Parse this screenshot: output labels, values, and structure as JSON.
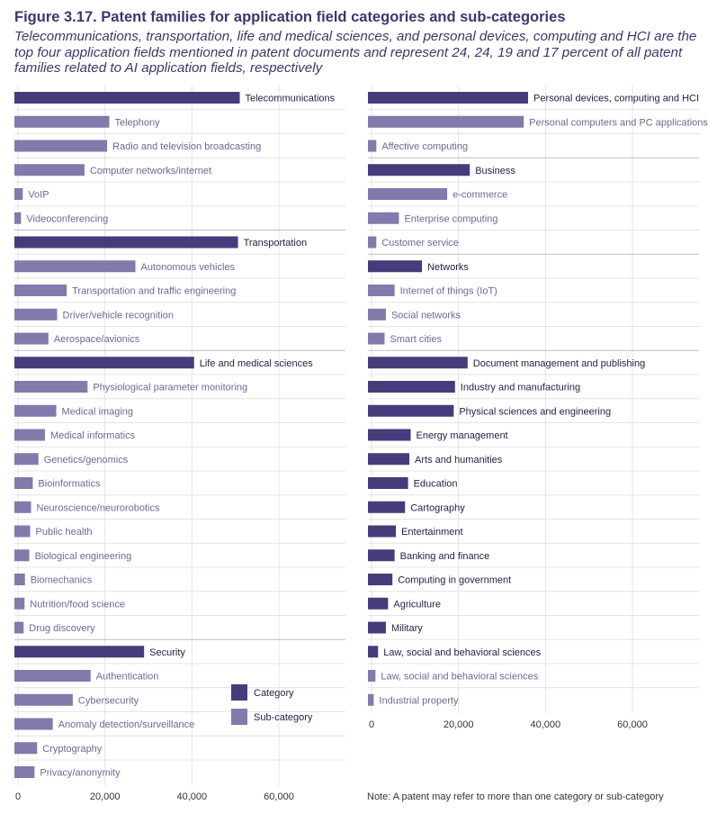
{
  "figure": {
    "title": "Figure 3.17. Patent families for application field categories and sub-categories",
    "subtitle": "Telecommunications, transportation, life and medical sciences, and personal devices, computing and HCI are the top four application fields mentioned in patent documents and represent 24, 24, 19 and 17 percent of all patent families related to AI application fields, respectively",
    "footnote": "Note: A patent may refer to more than one category or sub-category"
  },
  "colors": {
    "category": "#463c7b",
    "subcategory": "#8479ab",
    "grid": "#e4e4e4",
    "separator": "#bdbdbd"
  },
  "legend": {
    "category": "Category",
    "subcategory": "Sub-category"
  },
  "chart_data": [
    {
      "type": "bar",
      "orientation": "horizontal",
      "xlim": [
        0,
        75000
      ],
      "xticks": [
        "0",
        "20,000",
        "40,000",
        "60,000"
      ],
      "xtick_values": [
        0,
        20000,
        40000,
        60000
      ],
      "rows": [
        {
          "label": "Telecommunications",
          "value": 51000,
          "kind": "category"
        },
        {
          "label": "Telephony",
          "value": 21000,
          "kind": "subcategory"
        },
        {
          "label": "Radio and television broadcasting",
          "value": 20500,
          "kind": "subcategory"
        },
        {
          "label": "Computer networks/internet",
          "value": 15300,
          "kind": "subcategory"
        },
        {
          "label": "VoIP",
          "value": 1100,
          "kind": "subcategory"
        },
        {
          "label": "Videoconferencing",
          "value": 700,
          "kind": "subcategory"
        },
        {
          "label": "Transportation",
          "value": 50600,
          "kind": "category"
        },
        {
          "label": "Autonomous vehicles",
          "value": 27000,
          "kind": "subcategory"
        },
        {
          "label": "Transportation and traffic engineering",
          "value": 11200,
          "kind": "subcategory"
        },
        {
          "label": "Driver/vehicle recognition",
          "value": 9000,
          "kind": "subcategory"
        },
        {
          "label": "Aerospace/avionics",
          "value": 7000,
          "kind": "subcategory"
        },
        {
          "label": "Life and medical sciences",
          "value": 40500,
          "kind": "category"
        },
        {
          "label": "Physiological parameter monitoring",
          "value": 16000,
          "kind": "subcategory"
        },
        {
          "label": "Medical imaging",
          "value": 8800,
          "kind": "subcategory"
        },
        {
          "label": "Medical informatics",
          "value": 6200,
          "kind": "subcategory"
        },
        {
          "label": "Genetics/genomics",
          "value": 4700,
          "kind": "subcategory"
        },
        {
          "label": "Bioinformatics",
          "value": 3400,
          "kind": "subcategory"
        },
        {
          "label": "Neuroscience/neurorobotics",
          "value": 3000,
          "kind": "subcategory"
        },
        {
          "label": "Public health",
          "value": 2800,
          "kind": "subcategory"
        },
        {
          "label": "Biological engineering",
          "value": 2600,
          "kind": "subcategory"
        },
        {
          "label": "Biomechanics",
          "value": 1600,
          "kind": "subcategory"
        },
        {
          "label": "Nutrition/food science",
          "value": 1500,
          "kind": "subcategory"
        },
        {
          "label": "Drug discovery",
          "value": 1300,
          "kind": "subcategory"
        },
        {
          "label": "Security",
          "value": 29000,
          "kind": "category"
        },
        {
          "label": "Authentication",
          "value": 16700,
          "kind": "subcategory"
        },
        {
          "label": "Cybersecurity",
          "value": 12600,
          "kind": "subcategory"
        },
        {
          "label": "Anomaly detection/surveillance",
          "value": 8000,
          "kind": "subcategory"
        },
        {
          "label": "Cryptography",
          "value": 4400,
          "kind": "subcategory"
        },
        {
          "label": "Privacy/anonymity",
          "value": 3800,
          "kind": "subcategory"
        }
      ]
    },
    {
      "type": "bar",
      "orientation": "horizontal",
      "xlim": [
        0,
        75000
      ],
      "xticks": [
        "0",
        "20,000",
        "40,000",
        "60,000"
      ],
      "xtick_values": [
        0,
        20000,
        40000,
        60000
      ],
      "rows": [
        {
          "label": "Personal devices, computing and HCI",
          "value": 36000,
          "kind": "category"
        },
        {
          "label": "Personal computers and PC applications",
          "value": 35000,
          "kind": "subcategory"
        },
        {
          "label": "Affective computing",
          "value": 1100,
          "kind": "subcategory"
        },
        {
          "label": "Business",
          "value": 22600,
          "kind": "category"
        },
        {
          "label": "e-commerce",
          "value": 17400,
          "kind": "subcategory"
        },
        {
          "label": "Enterprise computing",
          "value": 6300,
          "kind": "subcategory"
        },
        {
          "label": "Customer service",
          "value": 1100,
          "kind": "subcategory"
        },
        {
          "label": "Networks",
          "value": 11600,
          "kind": "category"
        },
        {
          "label": "Internet of things (IoT)",
          "value": 5300,
          "kind": "subcategory"
        },
        {
          "label": "Social networks",
          "value": 3300,
          "kind": "subcategory"
        },
        {
          "label": "Smart cities",
          "value": 3000,
          "kind": "subcategory"
        },
        {
          "label": "Document management and publishing",
          "value": 22100,
          "kind": "category"
        },
        {
          "label": "Industry and manufacturing",
          "value": 19200,
          "kind": "category"
        },
        {
          "label": "Physical sciences and engineering",
          "value": 18900,
          "kind": "category"
        },
        {
          "label": "Energy management",
          "value": 9000,
          "kind": "category"
        },
        {
          "label": "Arts and humanities",
          "value": 8700,
          "kind": "category"
        },
        {
          "label": "Education",
          "value": 8400,
          "kind": "category"
        },
        {
          "label": "Cartography",
          "value": 7700,
          "kind": "category"
        },
        {
          "label": "Entertainment",
          "value": 5600,
          "kind": "category"
        },
        {
          "label": "Banking and finance",
          "value": 5300,
          "kind": "category"
        },
        {
          "label": "Computing in government",
          "value": 4800,
          "kind": "category"
        },
        {
          "label": "Agriculture",
          "value": 3800,
          "kind": "category"
        },
        {
          "label": "Military",
          "value": 3300,
          "kind": "category"
        },
        {
          "label": "Law, social and behavioral sciences",
          "value": 1500,
          "kind": "category"
        },
        {
          "label": "Law, social and behavioral sciences",
          "value": 900,
          "kind": "subcategory"
        },
        {
          "label": "Industrial property",
          "value": 500,
          "kind": "subcategory"
        }
      ]
    }
  ]
}
